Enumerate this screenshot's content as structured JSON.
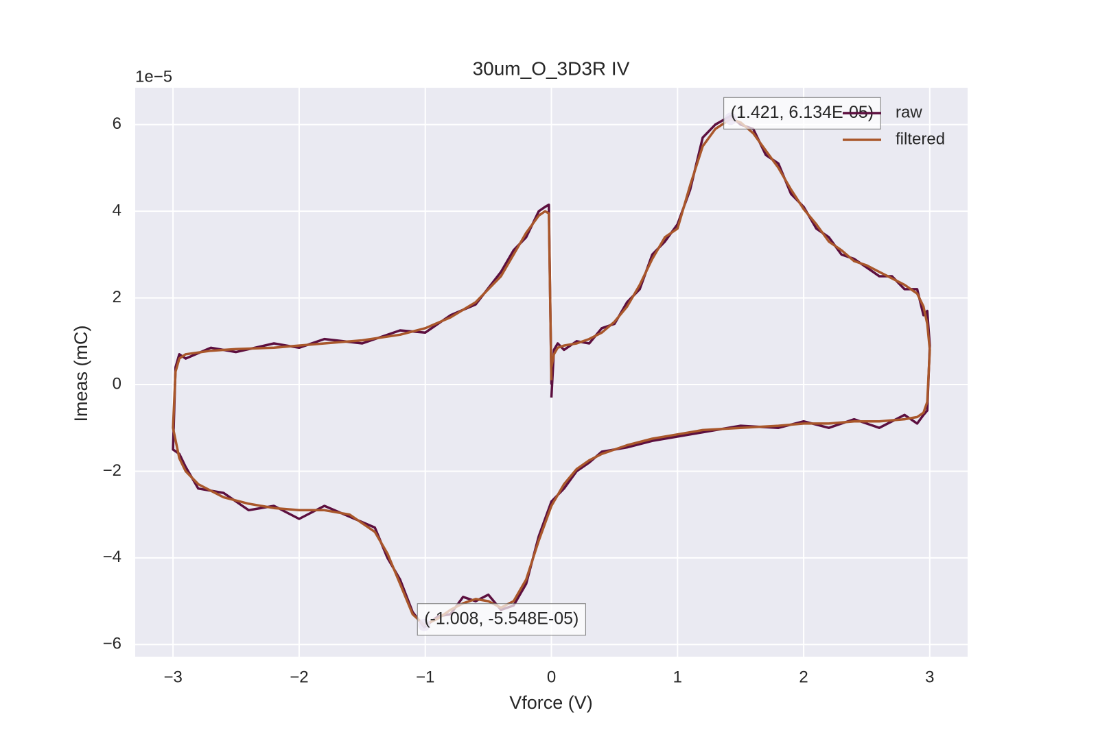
{
  "chart_data": {
    "type": "line",
    "title": "30um_O_3D3R IV",
    "x_label": "Vforce (V)",
    "y_label": "Imeas (mC)",
    "y_offset_label": "1e−5",
    "xlim": [
      -3.3,
      3.3
    ],
    "ylim": [
      -6.28,
      6.85
    ],
    "xticks": [
      {
        "value": -3,
        "label": "−3"
      },
      {
        "value": -2,
        "label": "−2"
      },
      {
        "value": -1,
        "label": "−1"
      },
      0,
      1,
      2,
      3
    ],
    "yticks": [
      {
        "value": -6,
        "label": "−6"
      },
      {
        "value": -4,
        "label": "−4"
      },
      {
        "value": -2,
        "label": "−2"
      },
      0,
      2,
      4,
      6
    ],
    "grid": true,
    "legend": "upper right",
    "x": [
      0,
      0.02,
      0.05,
      0.1,
      0.2,
      0.3,
      0.4,
      0.5,
      0.6,
      0.7,
      0.8,
      0.9,
      1.0,
      1.1,
      1.2,
      1.3,
      1.421,
      1.5,
      1.6,
      1.7,
      1.8,
      1.9,
      2.0,
      2.1,
      2.2,
      2.3,
      2.4,
      2.5,
      2.6,
      2.7,
      2.8,
      2.9,
      2.95,
      2.98,
      3.0,
      2.98,
      2.95,
      2.9,
      2.8,
      2.6,
      2.4,
      2.2,
      2.0,
      1.8,
      1.5,
      1.2,
      1.0,
      0.8,
      0.6,
      0.4,
      0.3,
      0.2,
      0.1,
      0.0,
      -0.1,
      -0.2,
      -0.3,
      -0.4,
      -0.5,
      -0.6,
      -0.7,
      -0.8,
      -0.9,
      -1.008,
      -1.1,
      -1.2,
      -1.3,
      -1.4,
      -1.6,
      -1.8,
      -2.0,
      -2.2,
      -2.4,
      -2.6,
      -2.8,
      -2.9,
      -2.95,
      -3.0,
      -2.98,
      -2.95,
      -2.9,
      -2.7,
      -2.5,
      -2.2,
      -2.0,
      -1.8,
      -1.5,
      -1.2,
      -1.0,
      -0.8,
      -0.6,
      -0.4,
      -0.3,
      -0.2,
      -0.1,
      -0.05,
      -0.02,
      0.0
    ],
    "series": [
      {
        "name": "raw",
        "color": "#5c0f3f",
        "values": [
          -0.3,
          0.8,
          0.95,
          0.8,
          1.0,
          0.95,
          1.3,
          1.4,
          1.9,
          2.2,
          3.0,
          3.3,
          3.7,
          4.5,
          5.7,
          6.0,
          6.2,
          6.0,
          5.9,
          5.3,
          5.1,
          4.4,
          4.1,
          3.6,
          3.4,
          3.0,
          2.9,
          2.7,
          2.5,
          2.5,
          2.2,
          2.2,
          1.6,
          1.7,
          0.9,
          -0.6,
          -0.7,
          -0.9,
          -0.7,
          -1.0,
          -0.8,
          -1.0,
          -0.85,
          -1.0,
          -0.95,
          -1.1,
          -1.2,
          -1.3,
          -1.45,
          -1.55,
          -1.8,
          -2.0,
          -2.4,
          -2.7,
          -3.5,
          -4.6,
          -5.1,
          -5.2,
          -4.85,
          -5.0,
          -4.9,
          -5.3,
          -5.35,
          -5.6,
          -5.25,
          -4.5,
          -4.0,
          -3.3,
          -3.05,
          -2.8,
          -3.1,
          -2.8,
          -2.9,
          -2.5,
          -2.4,
          -1.9,
          -1.6,
          -1.5,
          0.4,
          0.7,
          0.6,
          0.85,
          0.75,
          0.95,
          0.85,
          1.05,
          0.95,
          1.25,
          1.2,
          1.6,
          1.85,
          2.6,
          3.1,
          3.4,
          4.0,
          4.1,
          4.15,
          0.0
        ]
      },
      {
        "name": "filtered",
        "color": "#a9572b",
        "values": [
          0.4,
          0.7,
          0.85,
          0.9,
          0.95,
          1.05,
          1.2,
          1.45,
          1.8,
          2.3,
          2.9,
          3.4,
          3.6,
          4.6,
          5.5,
          5.9,
          6.13,
          6.05,
          5.8,
          5.4,
          5.0,
          4.5,
          4.05,
          3.7,
          3.3,
          3.1,
          2.85,
          2.75,
          2.6,
          2.45,
          2.3,
          2.1,
          1.8,
          1.4,
          0.8,
          -0.4,
          -0.65,
          -0.75,
          -0.8,
          -0.85,
          -0.85,
          -0.9,
          -0.9,
          -0.95,
          -1.0,
          -1.05,
          -1.15,
          -1.25,
          -1.4,
          -1.6,
          -1.75,
          -1.95,
          -2.3,
          -2.8,
          -3.6,
          -4.5,
          -5.0,
          -5.15,
          -5.0,
          -4.95,
          -5.05,
          -5.2,
          -5.4,
          -5.548,
          -5.3,
          -4.6,
          -3.9,
          -3.4,
          -3.0,
          -2.9,
          -2.9,
          -2.85,
          -2.75,
          -2.6,
          -2.3,
          -2.0,
          -1.7,
          -1.0,
          0.3,
          0.6,
          0.7,
          0.78,
          0.82,
          0.85,
          0.9,
          0.95,
          1.02,
          1.15,
          1.3,
          1.55,
          1.9,
          2.5,
          3.0,
          3.5,
          3.9,
          4.0,
          3.95,
          0.1
        ]
      }
    ],
    "annotations": [
      {
        "text": "(1.421, 6.134E-05)",
        "x": 1.421,
        "y": 6.134
      },
      {
        "text": "(-1.008, -5.548E-05)",
        "x": -1.008,
        "y": -5.548
      }
    ]
  }
}
